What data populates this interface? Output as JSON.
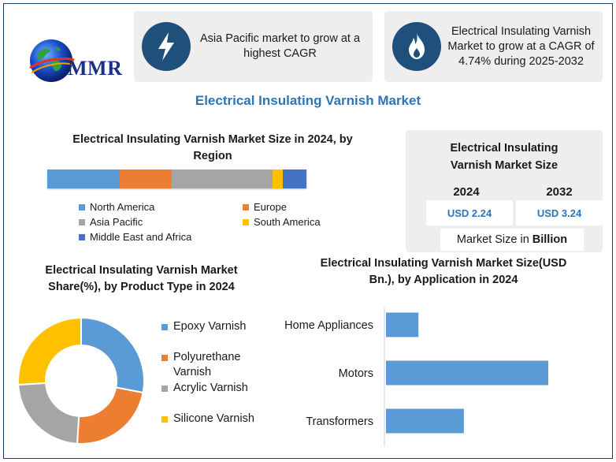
{
  "logo": {
    "brand": "MMR"
  },
  "cards": [
    {
      "text": "Asia Pacific market to grow at a highest CAGR",
      "icon": "lightning-icon"
    },
    {
      "text": "Electrical Insulating Varnish Market to grow at a CAGR of 4.74% during 2025-2032",
      "icon": "flame-icon"
    }
  ],
  "main_title": "Electrical Insulating Varnish Market",
  "colors": {
    "blue": "#5b9bd5",
    "orange": "#ed7d31",
    "gray": "#a5a5a5",
    "yellow": "#ffc000",
    "dark_blue": "#4472c4",
    "icon_bg": "#1f4f7b",
    "title": "#2e75b6"
  },
  "market_size": {
    "title": "Electrical Insulating Varnish Market Size",
    "year1": "2024",
    "value1": "USD 2.24",
    "year2": "2032",
    "value2": "USD 3.24",
    "unit_label": "Market Size in",
    "unit_bold": "Billion"
  },
  "chart_data": [
    {
      "type": "bar",
      "title": "Electrical Insulating Varnish Market Size in 2024, by Region",
      "orientation": "horizontal-stacked",
      "series": [
        {
          "name": "North America",
          "values": [
            28
          ]
        },
        {
          "name": "Europe",
          "values": [
            20
          ]
        },
        {
          "name": "Asia Pacific",
          "values": [
            39
          ]
        },
        {
          "name": "South America",
          "values": [
            4
          ]
        },
        {
          "name": "Middle East and Africa",
          "values": [
            9
          ]
        }
      ],
      "legend": "bottom"
    },
    {
      "type": "pie",
      "title": "Electrical Insulating Varnish Market Share(%), by Product Type in 2024",
      "donut": true,
      "categories": [
        "Epoxy Varnish",
        "Polyurethane Varnish",
        "Acrylic Varnish",
        "Silicone Varnish"
      ],
      "values": [
        28,
        23,
        23,
        26
      ],
      "legend": "right"
    },
    {
      "type": "bar",
      "title": "Electrical Insulating Varnish Market Size(USD Bn.), by Application in 2024",
      "orientation": "horizontal",
      "categories": [
        "Home Appliances",
        "Motors",
        "Transformers"
      ],
      "values": [
        0.2,
        1.0,
        0.48
      ],
      "grid": false,
      "xaxis_visible": false
    }
  ]
}
